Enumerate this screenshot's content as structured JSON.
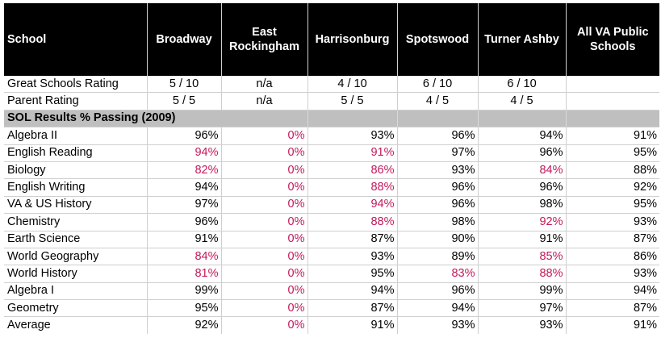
{
  "headers": [
    "School",
    "Broadway",
    "East Rockingham",
    "Harrisonburg",
    "Spotswood",
    "Turner Ashby",
    "All VA Public Schools"
  ],
  "ratings": [
    {
      "label": "Great Schools Rating",
      "values": [
        "5 / 10",
        "n/a",
        "4 / 10",
        "6 / 10",
        "6 / 10",
        ""
      ]
    },
    {
      "label": "Parent Rating",
      "values": [
        "5 / 5",
        "n/a",
        "5 / 5",
        "4 / 5",
        "4 / 5",
        ""
      ]
    }
  ],
  "section_title": "SOL Results % Passing (2009)",
  "colors": {
    "below_state": "#c2185b",
    "header_bg": "#000000",
    "section_bg": "#bfbfbf"
  },
  "sol_rows": [
    {
      "label": "Algebra II",
      "values": [
        "96%",
        "0%",
        "93%",
        "96%",
        "94%",
        "91%"
      ],
      "red": [
        false,
        true,
        false,
        false,
        false,
        false
      ]
    },
    {
      "label": "English Reading",
      "values": [
        "94%",
        "0%",
        "91%",
        "97%",
        "96%",
        "95%"
      ],
      "red": [
        true,
        true,
        true,
        false,
        false,
        false
      ]
    },
    {
      "label": "Biology",
      "values": [
        "82%",
        "0%",
        "86%",
        "93%",
        "84%",
        "88%"
      ],
      "red": [
        true,
        true,
        true,
        false,
        true,
        false
      ]
    },
    {
      "label": "English Writing",
      "values": [
        "94%",
        "0%",
        "88%",
        "96%",
        "96%",
        "92%"
      ],
      "red": [
        false,
        true,
        true,
        false,
        false,
        false
      ]
    },
    {
      "label": "VA & US History",
      "values": [
        "97%",
        "0%",
        "94%",
        "96%",
        "98%",
        "95%"
      ],
      "red": [
        false,
        true,
        true,
        false,
        false,
        false
      ]
    },
    {
      "label": "Chemistry",
      "values": [
        "96%",
        "0%",
        "88%",
        "98%",
        "92%",
        "93%"
      ],
      "red": [
        false,
        true,
        true,
        false,
        true,
        false
      ]
    },
    {
      "label": "Earth Science",
      "values": [
        "91%",
        "0%",
        "87%",
        "90%",
        "91%",
        "87%"
      ],
      "red": [
        false,
        true,
        false,
        false,
        false,
        false
      ]
    },
    {
      "label": "World Geography",
      "values": [
        "84%",
        "0%",
        "93%",
        "89%",
        "85%",
        "86%"
      ],
      "red": [
        true,
        true,
        false,
        false,
        true,
        false
      ]
    },
    {
      "label": "World History",
      "values": [
        "81%",
        "0%",
        "95%",
        "83%",
        "88%",
        "93%"
      ],
      "red": [
        true,
        true,
        false,
        true,
        true,
        false
      ]
    },
    {
      "label": "Algebra I",
      "values": [
        "99%",
        "0%",
        "94%",
        "96%",
        "99%",
        "94%"
      ],
      "red": [
        false,
        true,
        false,
        false,
        false,
        false
      ]
    },
    {
      "label": "Geometry",
      "values": [
        "95%",
        "0%",
        "87%",
        "94%",
        "97%",
        "87%"
      ],
      "red": [
        false,
        true,
        false,
        false,
        false,
        false
      ]
    }
  ],
  "average_row": {
    "label": "Average",
    "values": [
      "92%",
      "0%",
      "91%",
      "93%",
      "93%",
      "91%"
    ],
    "red": [
      false,
      true,
      false,
      false,
      false,
      false
    ]
  }
}
